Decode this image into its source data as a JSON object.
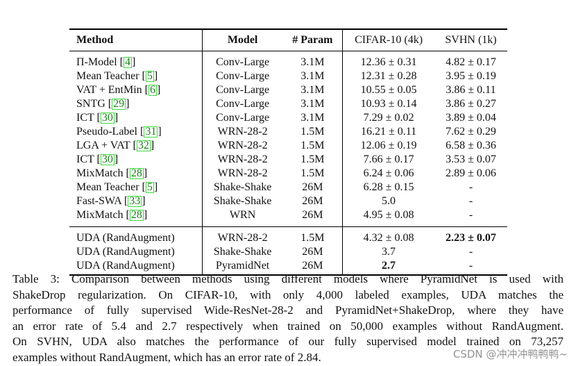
{
  "table": {
    "headers": {
      "method": "Method",
      "model": "Model",
      "param": "# Param",
      "cifar": "CIFAR-10 (4k)",
      "svhn": "SVHN (1k)"
    },
    "group1": [
      {
        "method": "Π-Model",
        "ref": "4",
        "model": "Conv-Large",
        "param": "3.1M",
        "cifar": "12.36 ± 0.31",
        "svhn": "4.82 ± 0.17"
      },
      {
        "method": "Mean Teacher",
        "ref": "5",
        "model": "Conv-Large",
        "param": "3.1M",
        "cifar": "12.31 ± 0.28",
        "svhn": "3.95 ± 0.19"
      },
      {
        "method": "VAT + EntMin",
        "ref": "6",
        "model": "Conv-Large",
        "param": "3.1M",
        "cifar": "10.55 ± 0.05",
        "svhn": "3.86 ± 0.11"
      },
      {
        "method": "SNTG",
        "ref": "29",
        "model": "Conv-Large",
        "param": "3.1M",
        "cifar": "10.93 ± 0.14",
        "svhn": "3.86 ± 0.27"
      },
      {
        "method": "ICT",
        "ref": "30",
        "model": "Conv-Large",
        "param": "3.1M",
        "cifar": "7.29 ± 0.02",
        "svhn": "3.89 ± 0.04"
      },
      {
        "method": "Pseudo-Label",
        "ref": "31",
        "model": "WRN-28-2",
        "param": "1.5M",
        "cifar": "16.21 ± 0.11",
        "svhn": "7.62 ± 0.29"
      },
      {
        "method": "LGA + VAT",
        "ref": "32",
        "model": "WRN-28-2",
        "param": "1.5M",
        "cifar": "12.06 ± 0.19",
        "svhn": "6.58 ± 0.36"
      },
      {
        "method": "ICT",
        "ref": "30",
        "model": "WRN-28-2",
        "param": "1.5M",
        "cifar": "7.66 ± 0.17",
        "svhn": "3.53 ± 0.07"
      },
      {
        "method": "MixMatch",
        "ref": "28",
        "model": "WRN-28-2",
        "param": "1.5M",
        "cifar": "6.24 ± 0.06",
        "svhn": "2.89 ± 0.06"
      },
      {
        "method": "Mean Teacher",
        "ref": "5",
        "model": "Shake-Shake",
        "param": "26M",
        "cifar": "6.28 ± 0.15",
        "svhn": "-"
      },
      {
        "method": "Fast-SWA",
        "ref": "33",
        "model": "Shake-Shake",
        "param": "26M",
        "cifar": "5.0",
        "svhn": "-"
      },
      {
        "method": "MixMatch",
        "ref": "28",
        "model": "WRN",
        "param": "26M",
        "cifar": "4.95 ± 0.08",
        "svhn": "-"
      }
    ],
    "group2": [
      {
        "method": "UDA (RandAugment)",
        "model": "WRN-28-2",
        "param": "1.5M",
        "cifar": "4.32 ± 0.08",
        "svhn": "2.23 ± 0.07",
        "svhn_bold": true,
        "cifar_bold": false
      },
      {
        "method": "UDA (RandAugment)",
        "model": "Shake-Shake",
        "param": "26M",
        "cifar": "3.7",
        "svhn": "-",
        "svhn_bold": false,
        "cifar_bold": false
      },
      {
        "method": "UDA (RandAugment)",
        "model": "PyramidNet",
        "param": "26M",
        "cifar": "2.7",
        "svhn": "-",
        "svhn_bold": false,
        "cifar_bold": true
      }
    ]
  },
  "caption": {
    "lines": [
      "Table 3:  Comparison between methods using different models where PyramidNet is used with",
      "ShakeDrop regularization.  On CIFAR-10, with only 4,000 labeled examples, UDA matches the",
      "performance of fully supervised Wide-ResNet-28-2 and PyramidNet+ShakeDrop, where they have",
      "an error rate of 5.4 and 2.7 respectively when trained on 50,000 examples without RandAugment.",
      "On SVHN, UDA also matches the performance of our fully supervised model trained on 73,257",
      "examples without RandAugment, which has an error rate of 2.84."
    ]
  },
  "watermark": "CSDN @冲冲冲鸭鸭鸭~"
}
